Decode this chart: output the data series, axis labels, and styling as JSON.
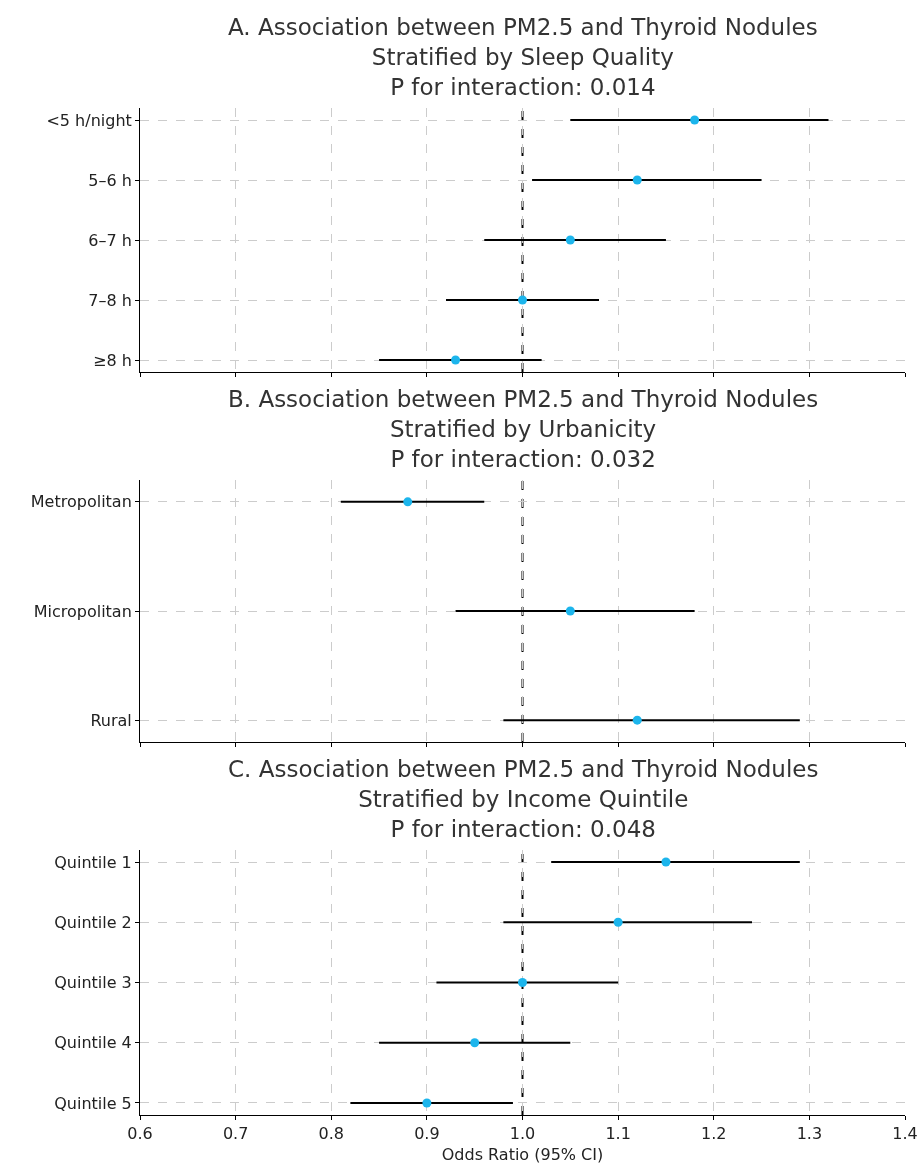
{
  "chart_data": [
    {
      "type": "scatter",
      "title": "A. Association between PM2.5 and Thyroid Nodules\nStratified by Sleep Quality\nP for interaction: 0.014",
      "orientation": "horizontal",
      "categories": [
        "<5 h/night",
        "5–6 h",
        "6–7 h",
        "7–8 h",
        "≥8 h"
      ],
      "color": "#1cb5ec",
      "marker": "circle",
      "values": [
        1.18,
        1.12,
        1.05,
        1.0,
        0.93
      ],
      "errors": [
        [
          1.05,
          1.32
        ],
        [
          1.01,
          1.25
        ],
        [
          0.96,
          1.15
        ],
        [
          0.92,
          1.08
        ],
        [
          0.85,
          1.02
        ]
      ],
      "xlim": [
        0.6,
        1.4
      ],
      "xticks": [
        0.6,
        0.7,
        0.8,
        0.9,
        1,
        1.1,
        1.2,
        1.3,
        1.4
      ],
      "tick_labels": "y",
      "grid": true,
      "ref_lines": [
        {
          "axis": "x",
          "value": 1.0,
          "color": "#000000",
          "line_style": "dashed"
        }
      ]
    },
    {
      "type": "scatter",
      "title": "B. Association between PM2.5 and Thyroid Nodules\nStratified by Urbanicity\nP for interaction: 0.032",
      "orientation": "horizontal",
      "categories": [
        "Metropolitan",
        "Micropolitan",
        "Rural"
      ],
      "color": "#1cb5ec",
      "marker": "circle",
      "values": [
        0.88,
        1.05,
        1.12
      ],
      "errors": [
        [
          0.81,
          0.96
        ],
        [
          0.93,
          1.18
        ],
        [
          0.98,
          1.29
        ]
      ],
      "xlim": [
        0.6,
        1.4
      ],
      "xticks": [
        0.6,
        0.7,
        0.8,
        0.9,
        1,
        1.1,
        1.2,
        1.3,
        1.4
      ],
      "tick_labels": "y",
      "grid": true,
      "ref_lines": [
        {
          "axis": "x",
          "value": 1.0,
          "color": "#000000",
          "line_style": "dashed"
        }
      ]
    },
    {
      "type": "scatter",
      "title": "C. Association between PM2.5 and Thyroid Nodules\nStratified by Income Quintile\nP for interaction: 0.048",
      "xlabel": "Odds Ratio (95% CI)",
      "orientation": "horizontal",
      "categories": [
        "Quintile 1",
        "Quintile 2",
        "Quintile 3",
        "Quintile 4",
        "Quintile 5"
      ],
      "color": "#1cb5ec",
      "marker": "circle",
      "values": [
        1.15,
        1.1,
        1.0,
        0.95,
        0.9
      ],
      "errors": [
        [
          1.03,
          1.29
        ],
        [
          0.98,
          1.24
        ],
        [
          0.91,
          1.1
        ],
        [
          0.85,
          1.05
        ],
        [
          0.82,
          0.99
        ]
      ],
      "xlim": [
        0.6,
        1.4
      ],
      "xticks": [
        0.6,
        0.7,
        0.8,
        0.9,
        {
          "value": 1.0,
          "label": "1.0"
        },
        1.1,
        1.2,
        1.3,
        1.4
      ],
      "grid": true,
      "ref_lines": [
        {
          "axis": "x",
          "value": 1.0,
          "color": "#000000",
          "line_style": "dashed"
        }
      ]
    }
  ]
}
